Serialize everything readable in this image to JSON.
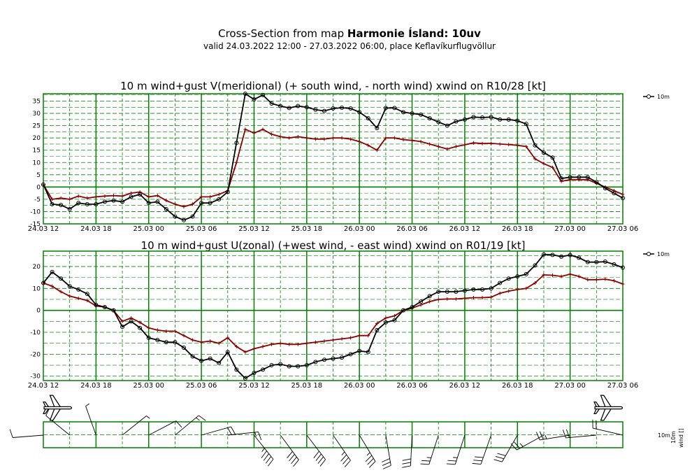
{
  "header": {
    "title_prefix": "Cross-Section from map ",
    "title_bold": "Harmonie Ísland: 10uv",
    "subtitle": "valid 24.03.2022 12:00 - 27.03.2022 06:00, place Keflavíkurflugvöllur"
  },
  "bottom": {
    "legend_10m": "10m",
    "rot_label_1": "10m",
    "rot_label_2": "wind []"
  },
  "colors": {
    "grid": "#008000",
    "wind": "#000000",
    "gust": "#8b0000"
  },
  "chart_data": [
    {
      "type": "line",
      "title": "10 m wind+gust V(meridional) (+ south wind, - north wind) xwind on R10/28 [kt]",
      "legend": "10m",
      "x_hours": [
        0,
        1,
        2,
        3,
        4,
        5,
        6,
        7,
        8,
        9,
        10,
        11,
        12,
        13,
        14,
        15,
        16,
        17,
        18,
        19,
        20,
        21,
        22,
        23,
        24,
        25,
        26,
        27,
        28,
        29,
        30,
        31,
        32,
        33,
        34,
        35,
        36,
        37,
        38,
        39,
        40,
        41,
        42,
        43,
        44,
        45,
        46,
        47,
        48,
        49,
        50,
        51,
        52,
        53,
        54,
        55,
        56,
        57,
        58,
        59,
        60,
        61,
        62,
        63,
        64,
        65,
        66
      ],
      "x_tick_labels": [
        "24.03 12",
        "24.03 18",
        "25.03 00",
        "25.03 06",
        "25.03 12",
        "25.03 18",
        "26.03 00",
        "26.03 06",
        "26.03 12",
        "26.03 18",
        "27.03 00",
        "27.03 06"
      ],
      "x_range": [
        0,
        66
      ],
      "ylim": [
        -15,
        38
      ],
      "y_ticks": [
        -15,
        -10,
        -5,
        0,
        5,
        10,
        15,
        20,
        25,
        30,
        35
      ],
      "series": [
        {
          "name": "wind",
          "values": [
            1,
            -7,
            -7.3,
            -9,
            -6.5,
            -7,
            -7,
            -6,
            -5.5,
            -6,
            -4,
            -3,
            -6.5,
            -6,
            -9,
            -12,
            -13.5,
            -12,
            -6.5,
            -6.5,
            -5,
            -2,
            18,
            38,
            35.7,
            37.5,
            34,
            33,
            32.2,
            33,
            32.5,
            31.5,
            31,
            32,
            32.3,
            32,
            30.5,
            28,
            24,
            32.2,
            32.2,
            30.5,
            30,
            29.5,
            28,
            26.5,
            25,
            26.7,
            27.5,
            28.5,
            28.3,
            28.5,
            27.5,
            27.5,
            27,
            25.7,
            17,
            14,
            12,
            3.5,
            4,
            4,
            4,
            2,
            -0.5,
            -2.5,
            -4.5
          ]
        },
        {
          "name": "gust",
          "values": [
            1,
            -5,
            -4.5,
            -5,
            -3.7,
            -4.5,
            -4,
            -3.7,
            -3.5,
            -3.7,
            -2.5,
            -2,
            -4,
            -3.5,
            -5.5,
            -7,
            -8,
            -7,
            -4,
            -4,
            -3,
            -1.5,
            10,
            23.5,
            22,
            23.5,
            21.5,
            20.5,
            20,
            20.5,
            20,
            19.5,
            19.5,
            20,
            20,
            19.5,
            18.5,
            17,
            15,
            20,
            20,
            19.3,
            19,
            18.5,
            17.5,
            16.5,
            15.5,
            16.5,
            17.2,
            18,
            17.7,
            17.8,
            17.5,
            17.3,
            17,
            16.5,
            11.5,
            9.5,
            8,
            2.3,
            3,
            3,
            3,
            1.5,
            0,
            -1.5,
            -3
          ]
        }
      ]
    },
    {
      "type": "line",
      "title": "10 m wind+gust U(zonal) (+west wind, - east wind) xwind on R01/19 [kt]",
      "legend": "10m",
      "x_hours": [
        0,
        1,
        2,
        3,
        4,
        5,
        6,
        7,
        8,
        9,
        10,
        11,
        12,
        13,
        14,
        15,
        16,
        17,
        18,
        19,
        20,
        21,
        22,
        23,
        24,
        25,
        26,
        27,
        28,
        29,
        30,
        31,
        32,
        33,
        34,
        35,
        36,
        37,
        38,
        39,
        40,
        41,
        42,
        43,
        44,
        45,
        46,
        47,
        48,
        49,
        50,
        51,
        52,
        53,
        54,
        55,
        56,
        57,
        58,
        59,
        60,
        61,
        62,
        63,
        64,
        65,
        66
      ],
      "x_tick_labels": [
        "24.03 12",
        "24.03 18",
        "25.03 00",
        "25.03 06",
        "25.03 12",
        "25.03 18",
        "26.03 00",
        "26.03 06",
        "26.03 12",
        "26.03 18",
        "27.03 00",
        "27.03 06"
      ],
      "x_range": [
        0,
        66
      ],
      "ylim": [
        -32,
        27
      ],
      "y_ticks": [
        -30,
        -20,
        -10,
        0,
        10,
        20
      ],
      "series": [
        {
          "name": "wind",
          "values": [
            12.5,
            17.5,
            14.5,
            11,
            9.5,
            7.5,
            2.5,
            1.5,
            0,
            -7.5,
            -5,
            -8,
            -12.5,
            -13.5,
            -14.5,
            -14.5,
            -17,
            -21,
            -23,
            -22,
            -24,
            -19,
            -27,
            -31,
            -28.5,
            -27,
            -25,
            -24.5,
            -25.5,
            -25.5,
            -25,
            -23.5,
            -22.5,
            -22,
            -21.5,
            -20,
            -18.5,
            -19,
            -9,
            -5.5,
            -4.5,
            0,
            1.5,
            4,
            6.5,
            8.5,
            8.5,
            8.5,
            9,
            9.5,
            9.5,
            10,
            12.5,
            14.5,
            15.5,
            16.5,
            20.5,
            25.5,
            25.3,
            24.5,
            25.2,
            24,
            22,
            22,
            22.2,
            21,
            19.5
          ]
        },
        {
          "name": "gust",
          "values": [
            12.5,
            11,
            8.5,
            6.5,
            5.5,
            4.5,
            2,
            1.5,
            0,
            -5,
            -3.5,
            -5.5,
            -8,
            -9,
            -9.5,
            -9.5,
            -11.5,
            -13.5,
            -14.5,
            -14,
            -15,
            -12.5,
            -16.5,
            -19,
            -17.5,
            -16.5,
            -15.5,
            -15,
            -15.5,
            -15.5,
            -15,
            -14.5,
            -14,
            -13.5,
            -13,
            -12.5,
            -11.5,
            -11.5,
            -6,
            -3.5,
            -2.5,
            0,
            1,
            2.5,
            4,
            5,
            5.2,
            5.2,
            5.5,
            5.8,
            5.8,
            6,
            7.8,
            8.8,
            9.5,
            10,
            12.5,
            16.2,
            16,
            15.5,
            16.5,
            15.5,
            14,
            14,
            14.2,
            13.5,
            12
          ]
        }
      ]
    }
  ]
}
